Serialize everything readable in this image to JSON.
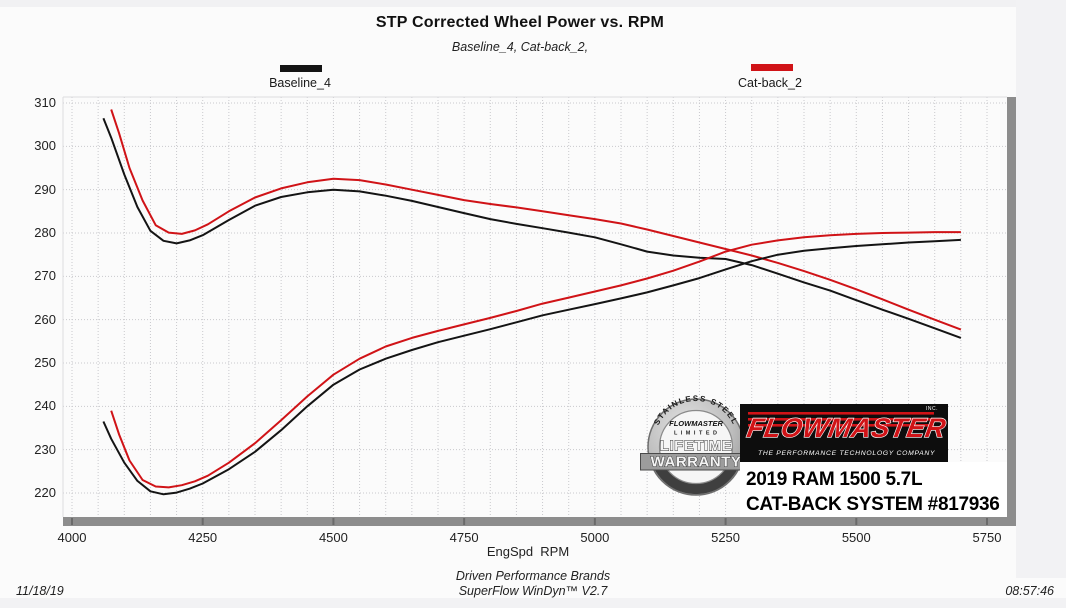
{
  "title": "STP Corrected Wheel Power vs. RPM",
  "subtitle": "Baseline_4, Cat-back_2,",
  "legend": {
    "items": [
      {
        "label": "Baseline_4",
        "color": "#141414"
      },
      {
        "label": "Cat-back_2",
        "color": "#d01317"
      }
    ]
  },
  "chart_data": {
    "type": "line",
    "title": "STP Corrected Wheel Power vs. RPM",
    "subtitle": "Baseline_4, Cat-back_2,",
    "xlabel": "EngSpd  RPM",
    "ylabel": "",
    "xlim": [
      4000,
      5790
    ],
    "ylim": [
      214,
      311
    ],
    "grid": true,
    "legend_position": "top",
    "x_ticks": [
      4000,
      4250,
      4500,
      4750,
      5000,
      5250,
      5500,
      5750
    ],
    "y_ticks": [
      220,
      230,
      240,
      250,
      260,
      270,
      280,
      290,
      300,
      310
    ],
    "series": [
      {
        "name": "Baseline_4 upper trace",
        "color": "#141414",
        "points": [
          [
            4060,
            306.5
          ],
          [
            4075,
            302
          ],
          [
            4100,
            293.5
          ],
          [
            4125,
            286
          ],
          [
            4150,
            280.5
          ],
          [
            4175,
            278.2
          ],
          [
            4200,
            277.6
          ],
          [
            4225,
            278.3
          ],
          [
            4250,
            279.5
          ],
          [
            4300,
            283
          ],
          [
            4350,
            286.3
          ],
          [
            4400,
            288.3
          ],
          [
            4450,
            289.4
          ],
          [
            4500,
            290
          ],
          [
            4550,
            289.6
          ],
          [
            4600,
            288.6
          ],
          [
            4650,
            287.4
          ],
          [
            4700,
            286
          ],
          [
            4750,
            284.6
          ],
          [
            4800,
            283.2
          ],
          [
            4850,
            282.1
          ],
          [
            4900,
            281.1
          ],
          [
            4950,
            280.1
          ],
          [
            5000,
            279
          ],
          [
            5050,
            277.4
          ],
          [
            5100,
            275.7
          ],
          [
            5150,
            274.8
          ],
          [
            5200,
            274.3
          ],
          [
            5250,
            274
          ],
          [
            5300,
            272.6
          ],
          [
            5350,
            270.6
          ],
          [
            5400,
            268.6
          ],
          [
            5450,
            266.7
          ],
          [
            5500,
            264.5
          ],
          [
            5550,
            262.3
          ],
          [
            5600,
            260.2
          ],
          [
            5650,
            258
          ],
          [
            5700,
            255.8
          ]
        ]
      },
      {
        "name": "Cat-back_2 upper trace",
        "color": "#d01317",
        "points": [
          [
            4075,
            308.5
          ],
          [
            4090,
            303
          ],
          [
            4110,
            295
          ],
          [
            4135,
            287.5
          ],
          [
            4160,
            281.8
          ],
          [
            4185,
            280.1
          ],
          [
            4210,
            279.8
          ],
          [
            4235,
            280.6
          ],
          [
            4260,
            282
          ],
          [
            4300,
            285
          ],
          [
            4350,
            288.2
          ],
          [
            4400,
            290.3
          ],
          [
            4450,
            291.7
          ],
          [
            4500,
            292.5
          ],
          [
            4550,
            292.2
          ],
          [
            4600,
            291.2
          ],
          [
            4650,
            290
          ],
          [
            4700,
            288.8
          ],
          [
            4750,
            287.6
          ],
          [
            4800,
            286.7
          ],
          [
            4850,
            285.9
          ],
          [
            4900,
            285
          ],
          [
            4950,
            284.1
          ],
          [
            5000,
            283.2
          ],
          [
            5050,
            282.2
          ],
          [
            5100,
            280.8
          ],
          [
            5150,
            279.3
          ],
          [
            5200,
            277.8
          ],
          [
            5250,
            276.3
          ],
          [
            5300,
            274.8
          ],
          [
            5350,
            273.1
          ],
          [
            5400,
            271.2
          ],
          [
            5450,
            269.2
          ],
          [
            5500,
            267
          ],
          [
            5550,
            264.7
          ],
          [
            5600,
            262.3
          ],
          [
            5650,
            260
          ],
          [
            5700,
            257.7
          ]
        ]
      },
      {
        "name": "Baseline_4 lower trace",
        "color": "#141414",
        "points": [
          [
            4060,
            236.5
          ],
          [
            4075,
            232.5
          ],
          [
            4100,
            227
          ],
          [
            4125,
            222.8
          ],
          [
            4150,
            220.4
          ],
          [
            4175,
            219.7
          ],
          [
            4200,
            220.1
          ],
          [
            4225,
            221
          ],
          [
            4250,
            222.2
          ],
          [
            4300,
            225.5
          ],
          [
            4350,
            229.5
          ],
          [
            4400,
            234.5
          ],
          [
            4450,
            240
          ],
          [
            4500,
            245
          ],
          [
            4550,
            248.5
          ],
          [
            4600,
            251
          ],
          [
            4650,
            253
          ],
          [
            4700,
            254.8
          ],
          [
            4750,
            256.3
          ],
          [
            4800,
            257.8
          ],
          [
            4850,
            259.4
          ],
          [
            4900,
            261
          ],
          [
            4950,
            262.3
          ],
          [
            5000,
            263.6
          ],
          [
            5050,
            264.9
          ],
          [
            5100,
            266.3
          ],
          [
            5150,
            267.9
          ],
          [
            5200,
            269.6
          ],
          [
            5250,
            271.6
          ],
          [
            5300,
            273.5
          ],
          [
            5350,
            275
          ],
          [
            5400,
            275.9
          ],
          [
            5450,
            276.5
          ],
          [
            5500,
            277
          ],
          [
            5550,
            277.4
          ],
          [
            5600,
            277.8
          ],
          [
            5650,
            278.1
          ],
          [
            5700,
            278.4
          ]
        ]
      },
      {
        "name": "Cat-back_2 lower trace",
        "color": "#d01317",
        "points": [
          [
            4075,
            239
          ],
          [
            4090,
            233.5
          ],
          [
            4110,
            227.5
          ],
          [
            4135,
            223
          ],
          [
            4160,
            221.5
          ],
          [
            4185,
            221.3
          ],
          [
            4210,
            221.8
          ],
          [
            4235,
            222.7
          ],
          [
            4260,
            224
          ],
          [
            4300,
            227
          ],
          [
            4350,
            231.5
          ],
          [
            4400,
            236.8
          ],
          [
            4450,
            242.3
          ],
          [
            4500,
            247.3
          ],
          [
            4550,
            251
          ],
          [
            4600,
            253.8
          ],
          [
            4650,
            255.8
          ],
          [
            4700,
            257.4
          ],
          [
            4750,
            258.9
          ],
          [
            4800,
            260.4
          ],
          [
            4850,
            262
          ],
          [
            4900,
            263.7
          ],
          [
            4950,
            265.1
          ],
          [
            5000,
            266.5
          ],
          [
            5050,
            267.9
          ],
          [
            5100,
            269.5
          ],
          [
            5150,
            271.3
          ],
          [
            5200,
            273.4
          ],
          [
            5250,
            275.7
          ],
          [
            5300,
            277.3
          ],
          [
            5350,
            278.3
          ],
          [
            5400,
            279
          ],
          [
            5450,
            279.5
          ],
          [
            5500,
            279.8
          ],
          [
            5550,
            280
          ],
          [
            5600,
            280.1
          ],
          [
            5650,
            280.2
          ],
          [
            5700,
            280.2
          ]
        ]
      }
    ]
  },
  "overlay": {
    "badge": {
      "arc_text": "STAINLESS STEEL",
      "brand": "FLOWMASTER",
      "limited": "L I M I T E D",
      "line1": "LIFETIME",
      "line2": "WARRANTY"
    },
    "logo": {
      "brand": "FLOWMASTER",
      "inc": "INC.",
      "tagline": "THE PERFORMANCE TECHNOLOGY COMPANY"
    },
    "vehicle": {
      "line1": "2019 RAM 1500 5.7L",
      "line2": "CAT-BACK SYSTEM #817936"
    }
  },
  "footer": {
    "date": "11/18/19",
    "center_line1": "Driven Performance Brands",
    "center_line2": "SuperFlow WinDyn™ V2.7",
    "time": "08:57:46"
  }
}
